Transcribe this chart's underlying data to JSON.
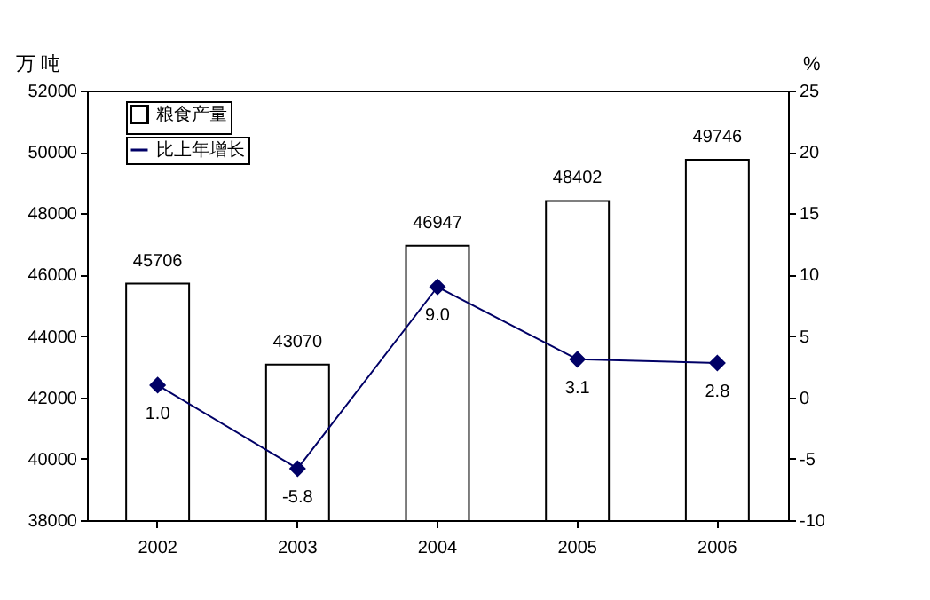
{
  "chart_data": {
    "type": "bar",
    "categories": [
      "2002",
      "2003",
      "2004",
      "2005",
      "2006"
    ],
    "ylabel": "万 吨",
    "y2label": "%",
    "series": [
      {
        "name": "粮食产量",
        "color": "#ffffff",
        "values": [
          45706,
          43070,
          46947,
          48402,
          49746
        ]
      },
      {
        "name": "比上年增长",
        "type": "line",
        "axis": "y2",
        "color": "#000066",
        "marker": "diamond",
        "values": [
          1.0,
          -5.8,
          9.0,
          3.1,
          2.8
        ],
        "value_labels": [
          "1.0",
          "-5.8",
          "9.0",
          "3.1",
          "2.8"
        ]
      }
    ],
    "ylim": [
      38000,
      52000
    ],
    "yticks": [
      38000,
      40000,
      42000,
      44000,
      46000,
      48000,
      50000,
      52000
    ],
    "y2lim": [
      -10,
      25
    ],
    "y2ticks": [
      -10,
      -5,
      0,
      5,
      10,
      15,
      20,
      25
    ],
    "data_labels": true,
    "legend": "top left",
    "grid": false
  }
}
